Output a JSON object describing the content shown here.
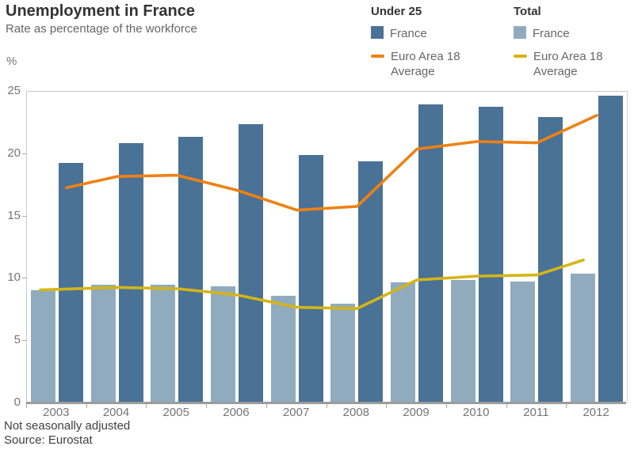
{
  "page_title": "Unemployment in France",
  "subtitle": "Rate as percentage of the workforce",
  "y_unit_label": "%",
  "footnotes": {
    "line1": "Not seasonally adjusted",
    "line2": "Source: Eurostat"
  },
  "colors": {
    "france_under25_bar": "#4a7296",
    "france_total_bar": "#90abbe",
    "euro_under25_line": "#ef8113",
    "euro_total_line": "#d4b516",
    "axis_line": "#c9c9c9",
    "baseline": "#9c9c9c",
    "tick": "#a9a9a9",
    "axis_text": "#757575",
    "title_text": "#333333",
    "muted_text": "#666666"
  },
  "legend": {
    "groups": [
      {
        "heading": "Under 25",
        "items": [
          {
            "swatch": "square",
            "label": "France",
            "color": "#4a7296"
          },
          {
            "swatch": "line",
            "label": "Euro Area 18 Average",
            "color": "#ef8113"
          }
        ]
      },
      {
        "heading": "Total",
        "items": [
          {
            "swatch": "square",
            "label": "France",
            "color": "#90abbe"
          },
          {
            "swatch": "line",
            "label": "Euro Area 18 Average",
            "color": "#d4b516"
          }
        ]
      }
    ]
  },
  "chart_data": {
    "type": "bar",
    "title": "Unemployment in France",
    "subtitle": "Rate as percentage of the workforce",
    "xlabel": "",
    "ylabel": "%",
    "ylim": [
      0,
      25
    ],
    "yticks": [
      0,
      5,
      10,
      15,
      20,
      25
    ],
    "grid": "off",
    "legend_position": "top-right",
    "categories": [
      "2003",
      "2004",
      "2005",
      "2006",
      "2007",
      "2008",
      "2009",
      "2010",
      "2011",
      "2012"
    ],
    "series": [
      {
        "name": "France – Under 25",
        "type": "bar",
        "color": "#4a7296",
        "values": [
          19.3,
          20.9,
          21.4,
          22.4,
          19.9,
          19.4,
          24.0,
          23.8,
          23.0,
          24.7
        ]
      },
      {
        "name": "France – Total",
        "type": "bar",
        "color": "#90abbe",
        "values": [
          9.1,
          9.5,
          9.5,
          9.4,
          8.6,
          8.0,
          9.7,
          9.9,
          9.8,
          10.4
        ]
      },
      {
        "name": "Euro Area 18 Average – Under 25",
        "type": "line",
        "color": "#ef8113",
        "values": [
          17.3,
          18.2,
          18.3,
          17.1,
          15.5,
          15.8,
          20.4,
          21.0,
          20.9,
          23.1
        ]
      },
      {
        "name": "Euro Area 18 Average – Total",
        "type": "line",
        "color": "#d4b516",
        "values": [
          9.1,
          9.3,
          9.2,
          8.7,
          7.7,
          7.6,
          9.9,
          10.2,
          10.3,
          11.5
        ]
      }
    ]
  }
}
